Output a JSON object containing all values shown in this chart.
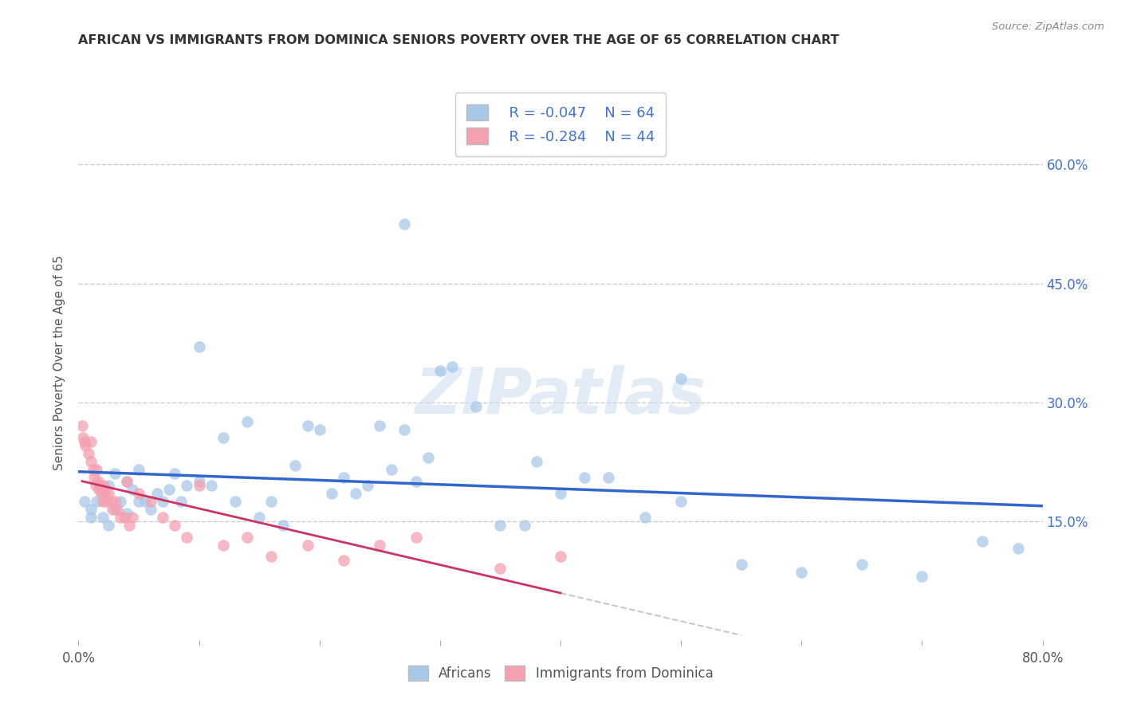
{
  "title": "AFRICAN VS IMMIGRANTS FROM DOMINICA SENIORS POVERTY OVER THE AGE OF 65 CORRELATION CHART",
  "source": "Source: ZipAtlas.com",
  "ylabel": "Seniors Poverty Over the Age of 65",
  "xlim": [
    0.0,
    0.8
  ],
  "ylim": [
    0.0,
    0.7
  ],
  "ytick_positions": [
    0.15,
    0.3,
    0.45,
    0.6
  ],
  "ytick_labels": [
    "15.0%",
    "30.0%",
    "45.0%",
    "60.0%"
  ],
  "blue_color": "#a8c8e8",
  "blue_line_color": "#3366cc",
  "pink_color": "#f4a0b0",
  "pink_line_color": "#cc3366",
  "pink_dash_color": "#cccccc",
  "legend_R1": "R = -0.047",
  "legend_N1": "N = 64",
  "legend_R2": "R = -0.284",
  "legend_N2": "N = 44",
  "legend_label1": "Africans",
  "legend_label2": "Immigrants from Dominica",
  "blue_scatter_x": [
    0.005,
    0.01,
    0.01,
    0.015,
    0.02,
    0.02,
    0.025,
    0.025,
    0.03,
    0.03,
    0.035,
    0.04,
    0.04,
    0.045,
    0.05,
    0.05,
    0.055,
    0.06,
    0.065,
    0.07,
    0.075,
    0.08,
    0.085,
    0.09,
    0.1,
    0.1,
    0.11,
    0.12,
    0.13,
    0.14,
    0.15,
    0.16,
    0.17,
    0.18,
    0.19,
    0.2,
    0.21,
    0.22,
    0.23,
    0.24,
    0.25,
    0.26,
    0.27,
    0.28,
    0.29,
    0.3,
    0.31,
    0.33,
    0.35,
    0.37,
    0.38,
    0.4,
    0.42,
    0.44,
    0.47,
    0.5,
    0.55,
    0.6,
    0.65,
    0.7,
    0.75,
    0.78,
    0.27,
    0.5
  ],
  "blue_scatter_y": [
    0.175,
    0.165,
    0.155,
    0.175,
    0.155,
    0.185,
    0.145,
    0.195,
    0.165,
    0.21,
    0.175,
    0.2,
    0.16,
    0.19,
    0.175,
    0.215,
    0.175,
    0.165,
    0.185,
    0.175,
    0.19,
    0.21,
    0.175,
    0.195,
    0.37,
    0.2,
    0.195,
    0.255,
    0.175,
    0.275,
    0.155,
    0.175,
    0.145,
    0.22,
    0.27,
    0.265,
    0.185,
    0.205,
    0.185,
    0.195,
    0.27,
    0.215,
    0.265,
    0.2,
    0.23,
    0.34,
    0.345,
    0.295,
    0.145,
    0.145,
    0.225,
    0.185,
    0.205,
    0.205,
    0.155,
    0.175,
    0.095,
    0.085,
    0.095,
    0.08,
    0.125,
    0.115,
    0.525,
    0.33
  ],
  "pink_scatter_x": [
    0.003,
    0.004,
    0.005,
    0.006,
    0.008,
    0.01,
    0.01,
    0.012,
    0.013,
    0.014,
    0.015,
    0.016,
    0.017,
    0.018,
    0.019,
    0.02,
    0.021,
    0.022,
    0.023,
    0.025,
    0.027,
    0.028,
    0.03,
    0.032,
    0.035,
    0.038,
    0.04,
    0.042,
    0.045,
    0.05,
    0.06,
    0.07,
    0.08,
    0.09,
    0.1,
    0.12,
    0.14,
    0.16,
    0.19,
    0.22,
    0.25,
    0.28,
    0.35,
    0.4
  ],
  "pink_scatter_y": [
    0.27,
    0.255,
    0.25,
    0.245,
    0.235,
    0.25,
    0.225,
    0.215,
    0.205,
    0.195,
    0.215,
    0.2,
    0.19,
    0.195,
    0.185,
    0.175,
    0.195,
    0.185,
    0.175,
    0.185,
    0.175,
    0.165,
    0.175,
    0.165,
    0.155,
    0.155,
    0.2,
    0.145,
    0.155,
    0.185,
    0.175,
    0.155,
    0.145,
    0.13,
    0.195,
    0.12,
    0.13,
    0.105,
    0.12,
    0.1,
    0.12,
    0.13,
    0.09,
    0.105
  ],
  "watermark_text": "ZIPatlas",
  "background_color": "#ffffff",
  "grid_color": "#cccccc",
  "title_color": "#333333",
  "source_color": "#888888",
  "label_color": "#555555",
  "tick_color_blue": "#4472c4"
}
